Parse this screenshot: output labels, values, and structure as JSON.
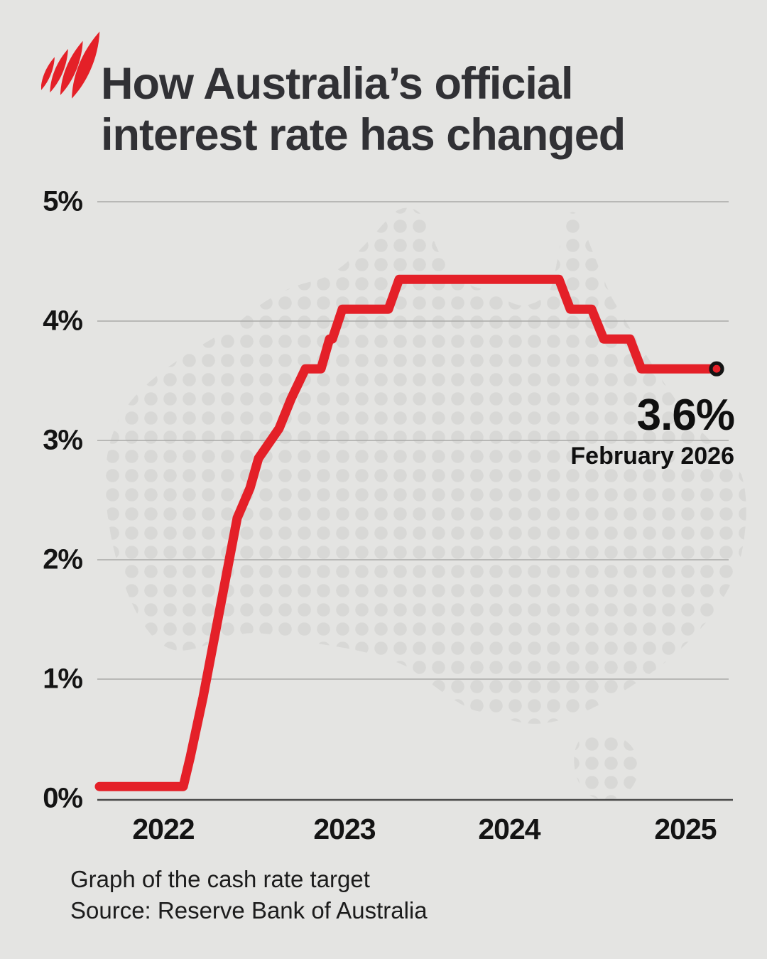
{
  "page": {
    "background": "#e4e4e2"
  },
  "header": {
    "logo_icon": "sbs-mercator-logo",
    "title_line1": "How Australia’s official",
    "title_line2": "interest rate has changed"
  },
  "colors": {
    "background": "#e4e4e2",
    "map_dot": "#d8d8d6",
    "grid_line": "#a9a9a7",
    "baseline": "#4a4a4a",
    "line_red": "#e42028",
    "marker_stroke": "#141414",
    "title_text": "#313135",
    "label_text": "#141414"
  },
  "chart_data": {
    "type": "line",
    "title": "How Australia's official interest rate has changed",
    "subtitle": "Graph of the cash rate target",
    "unit": "%",
    "ylim": [
      0,
      5
    ],
    "grid": true,
    "legend": "none",
    "background_motif": "halftone-dot-map-of-australia",
    "yticks": [
      {
        "label": "5%",
        "value": 5
      },
      {
        "label": "4%",
        "value": 4
      },
      {
        "label": "3%",
        "value": 3
      },
      {
        "label": "2%",
        "value": 2
      },
      {
        "label": "1%",
        "value": 1
      },
      {
        "label": "0%",
        "value": 0
      }
    ],
    "xticks": [
      {
        "label": "2022",
        "t": 0.1039
      },
      {
        "label": "2023",
        "t": 0.3888
      },
      {
        "label": "2024",
        "t": 0.648
      },
      {
        "label": "2025",
        "t": 0.9251
      }
    ],
    "series": [
      {
        "name": "Cash rate target",
        "color": "#e42028",
        "points": [
          [
            0.0034,
            0.1
          ],
          [
            0.1352,
            0.1
          ],
          [
            0.1464,
            0.35
          ],
          [
            0.1665,
            0.85
          ],
          [
            0.1844,
            1.35
          ],
          [
            0.2022,
            1.85
          ],
          [
            0.2201,
            2.35
          ],
          [
            0.2402,
            2.6
          ],
          [
            0.2536,
            2.85
          ],
          [
            0.286,
            3.1
          ],
          [
            0.305,
            3.35
          ],
          [
            0.3274,
            3.6
          ],
          [
            0.352,
            3.6
          ],
          [
            0.3654,
            3.85
          ],
          [
            0.3698,
            3.85
          ],
          [
            0.3855,
            4.1
          ],
          [
            0.4581,
            4.1
          ],
          [
            0.4749,
            4.35
          ],
          [
            0.7263,
            4.35
          ],
          [
            0.7441,
            4.1
          ],
          [
            0.7777,
            4.1
          ],
          [
            0.7966,
            3.85
          ],
          [
            0.838,
            3.85
          ],
          [
            0.8559,
            3.6
          ],
          [
            0.9743,
            3.6
          ]
        ]
      }
    ],
    "end_annotation": {
      "value": "3.6%",
      "label": "February 2026"
    }
  },
  "footer": {
    "caption_line1": "Graph of the cash rate target",
    "caption_line2": "Source: Reserve Bank of Australia"
  }
}
